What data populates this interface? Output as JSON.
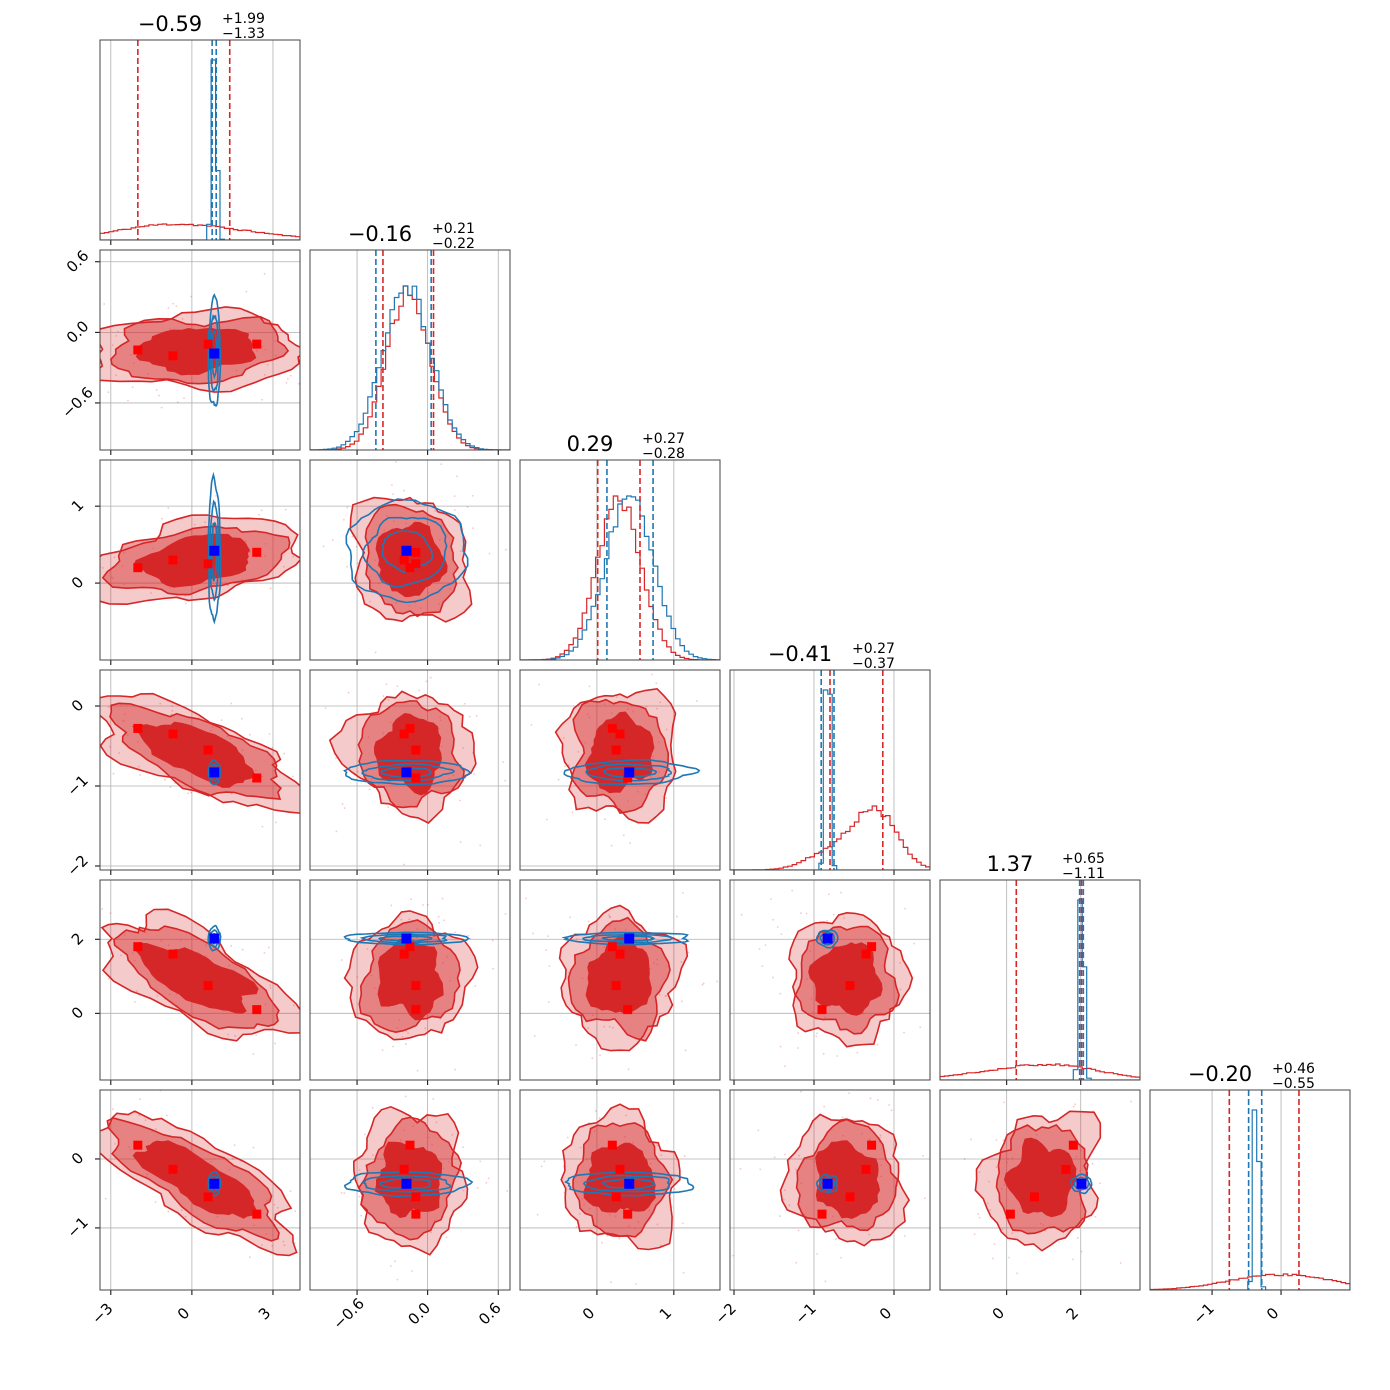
{
  "chart_data": {
    "type": "corner",
    "n_params": 6,
    "colors": {
      "primary": "#d62728",
      "secondary": "#1f77b4",
      "truth_primary": "#ff0000",
      "truth_secondary": "#0000ff",
      "grid": "#b0b0b0"
    },
    "titles": [
      {
        "value": "−0.59",
        "plus": "+1.99",
        "minus": "−1.33"
      },
      {
        "value": "−0.16",
        "plus": "+0.21",
        "minus": "−0.22"
      },
      {
        "value": "0.29",
        "plus": "+0.27",
        "minus": "−0.28"
      },
      {
        "value": "−0.41",
        "plus": "+0.27",
        "minus": "−0.37"
      },
      {
        "value": "1.37",
        "plus": "+0.65",
        "minus": "−1.11"
      },
      {
        "value": "−0.20",
        "plus": "+0.46",
        "minus": "−0.55"
      }
    ],
    "ranges": [
      [
        -3.4,
        4.0
      ],
      [
        -1.0,
        0.7
      ],
      [
        -1.0,
        1.6
      ],
      [
        -2.05,
        0.45
      ],
      [
        -1.8,
        3.6
      ],
      [
        -1.9,
        1.0
      ]
    ],
    "ticks": [
      {
        "values": [
          -3,
          0,
          3
        ],
        "labels": [
          "−3",
          "0",
          "3"
        ]
      },
      {
        "values": [
          -0.6,
          0.0,
          0.6
        ],
        "labels": [
          "−0.6",
          "0.0",
          "0.6"
        ]
      },
      {
        "values": [
          0,
          1
        ],
        "labels": [
          "0",
          "1"
        ]
      },
      {
        "values": [
          -2,
          -1,
          0
        ],
        "labels": [
          "−2",
          "−1",
          "0"
        ]
      },
      {
        "values": [
          0,
          2
        ],
        "labels": [
          "0",
          "2"
        ]
      },
      {
        "values": [
          -1,
          0
        ],
        "labels": [
          "−1",
          "0"
        ]
      }
    ],
    "marginal_primary_quantiles": [
      [
        -2.0,
        1.4
      ],
      [
        -0.38,
        0.05
      ],
      [
        0.01,
        0.56
      ],
      [
        -0.8,
        -0.14
      ],
      [
        0.26,
        2.02
      ],
      [
        -0.75,
        0.26
      ]
    ],
    "marginal_secondary_quantiles": [
      [
        0.75,
        0.9
      ],
      [
        -0.44,
        0.03
      ],
      [
        0.13,
        0.73
      ],
      [
        -0.91,
        -0.75
      ],
      [
        1.97,
        2.07
      ],
      [
        -0.47,
        -0.28
      ]
    ],
    "primary_peaks": [
      [
        [
          -2.0,
          0.85
        ],
        [
          -0.7,
          1.0
        ],
        [
          0.6,
          0.7
        ],
        [
          2.4,
          0.55
        ]
      ],
      [
        [
          -0.16,
          1.0
        ]
      ],
      [
        [
          0.29,
          1.0
        ]
      ],
      [
        [
          -0.25,
          1.0
        ],
        [
          -0.85,
          0.25
        ]
      ],
      [
        [
          1.4,
          1.0
        ],
        [
          -0.5,
          0.4
        ]
      ],
      [
        [
          -0.3,
          1.0
        ],
        [
          0.4,
          0.8
        ]
      ]
    ],
    "secondary_peaks": [
      [
        [
          0.83,
          1.0
        ]
      ],
      [
        [
          -0.18,
          1.0
        ]
      ],
      [
        [
          0.42,
          1.0
        ]
      ],
      [
        [
          -0.83,
          1.0
        ]
      ],
      [
        [
          2.02,
          1.0
        ]
      ],
      [
        [
          -0.36,
          1.0
        ]
      ]
    ],
    "primary_modes": [
      [
        -2.0,
        -0.15,
        0.2,
        -0.28,
        1.8,
        0.2
      ],
      [
        -0.7,
        -0.2,
        0.3,
        -0.35,
        1.6,
        -0.15
      ],
      [
        0.6,
        -0.1,
        0.25,
        -0.55,
        0.75,
        -0.55
      ],
      [
        2.4,
        -0.1,
        0.4,
        -0.9,
        0.1,
        -0.8
      ]
    ],
    "secondary_truth": [
      0.83,
      -0.18,
      0.42,
      -0.83,
      2.02,
      -0.36
    ]
  }
}
